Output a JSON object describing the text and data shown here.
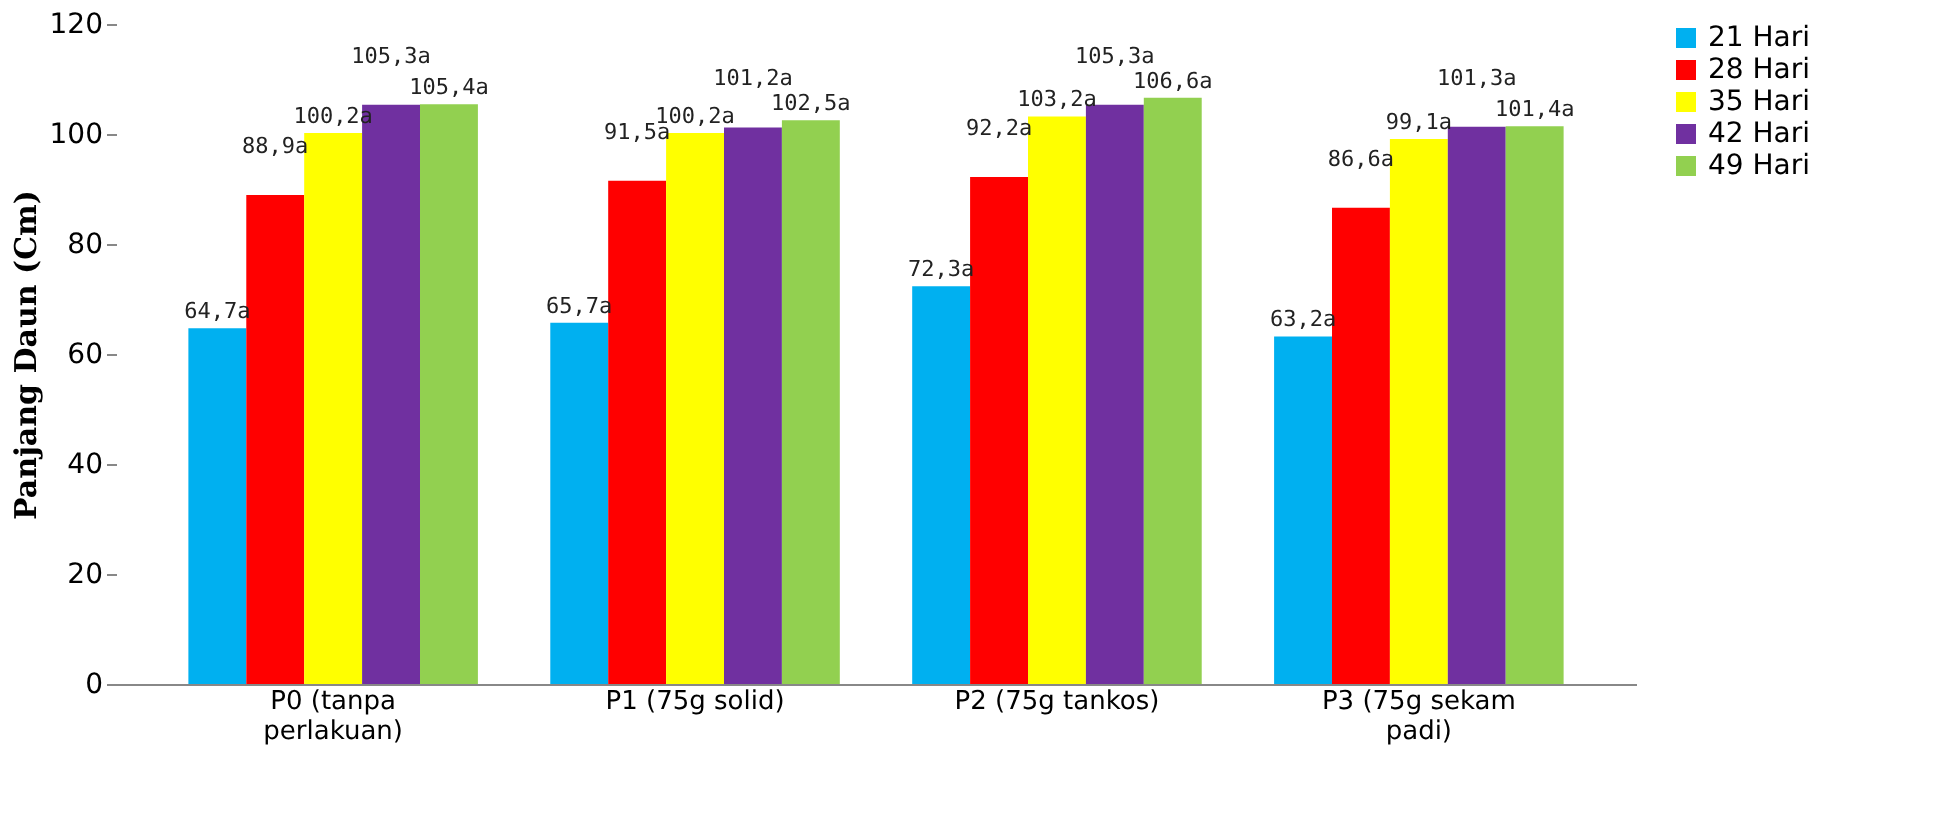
{
  "chart_data": {
    "type": "bar",
    "ylabel": "Panjang Daun (Cm)",
    "categories": [
      "P0 (tanpa perlakuan)",
      "P1 (75g solid)",
      "P2 (75g tankos)",
      "P3 (75g sekam padi)"
    ],
    "series": [
      {
        "name": "21 Hari",
        "color": "#00b0f0",
        "values": [
          64.7,
          65.7,
          72.3,
          63.2
        ],
        "value_labels": [
          "64,7a",
          "65,7a",
          "72,3a",
          "63,2a"
        ]
      },
      {
        "name": "28 Hari",
        "color": "#ff0000",
        "values": [
          88.9,
          91.5,
          92.2,
          86.6
        ],
        "value_labels": [
          "88,9a",
          "91,5a",
          "92,2a",
          "86,6a"
        ]
      },
      {
        "name": "35 Hari",
        "color": "#ffff00",
        "values": [
          100.2,
          100.2,
          103.2,
          99.1
        ],
        "value_labels": [
          "100,2a",
          "100,2a",
          "103,2a",
          "99,1a"
        ]
      },
      {
        "name": "42 Hari",
        "color": "#7030a0",
        "values": [
          105.3,
          101.2,
          105.3,
          101.3
        ],
        "value_labels": [
          "105,3a",
          "101,2a",
          "105,3a",
          "101,3a"
        ]
      },
      {
        "name": "49 Hari",
        "color": "#92d050",
        "values": [
          105.4,
          102.5,
          106.6,
          101.4
        ],
        "value_labels": [
          "105,4a",
          "102,5a",
          "106,6a",
          "101,4a"
        ]
      }
    ],
    "ylim": [
      0,
      120
    ],
    "yticks": [
      0,
      20,
      40,
      60,
      80,
      100,
      120
    ],
    "grid": false,
    "legend": "right"
  }
}
